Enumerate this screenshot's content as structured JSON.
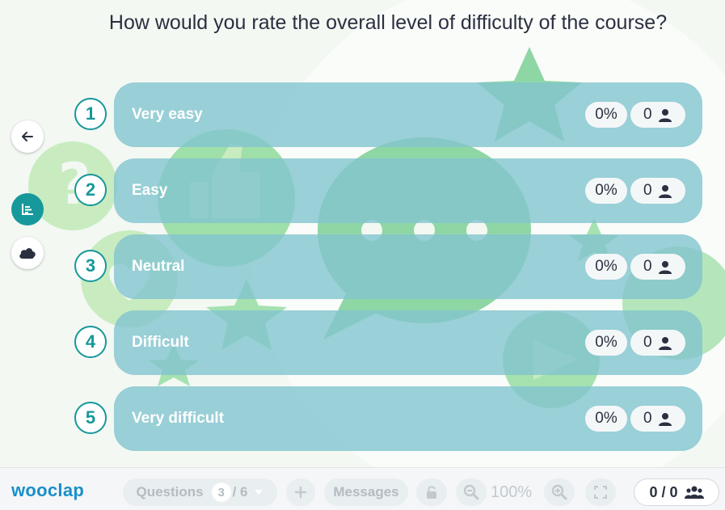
{
  "question": {
    "text": "How would you rate the overall level of difficulty of the course?"
  },
  "sidebar": {
    "back_icon": "arrow-left-icon",
    "results_icon": "bar-chart-icon",
    "wordcloud_icon": "cloud-icon"
  },
  "options": [
    {
      "number": "1",
      "label": "Very easy",
      "percent": "0%",
      "count": "0"
    },
    {
      "number": "2",
      "label": "Easy",
      "percent": "0%",
      "count": "0"
    },
    {
      "number": "3",
      "label": "Neutral",
      "percent": "0%",
      "count": "0"
    },
    {
      "number": "4",
      "label": "Difficult",
      "percent": "0%",
      "count": "0"
    },
    {
      "number": "5",
      "label": "Very difficult",
      "percent": "0%",
      "count": "0"
    }
  ],
  "footer": {
    "logo": "wooclap",
    "questions_label": "Questions",
    "question_current": "3",
    "question_total": "/ 6",
    "messages_label": "Messages",
    "zoom": "100%",
    "participants": "0 / 0"
  },
  "colors": {
    "accent": "#17999c",
    "option_bg": "#82c4ce",
    "logo": "#1a8fc9"
  }
}
